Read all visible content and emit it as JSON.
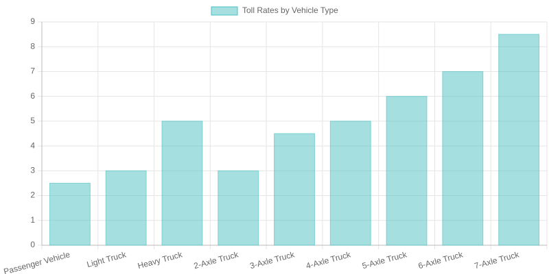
{
  "chart_data": {
    "type": "bar",
    "categories": [
      "Passenger Vehicle",
      "Light Truck",
      "Heavy Truck",
      "2-Axle Truck",
      "3-Axle Truck",
      "4-Axle Truck",
      "5-Axle Truck",
      "6-Axle Truck",
      "7-Axle Truck"
    ],
    "series": [
      {
        "name": "Toll Rates by Vehicle Type",
        "color": "#4bc0c0",
        "values": [
          2.5,
          3,
          5,
          3,
          4.5,
          5,
          6,
          7,
          8.5
        ]
      }
    ],
    "ylim": [
      0,
      9
    ],
    "yticks": [
      0,
      1,
      2,
      3,
      4,
      5,
      6,
      7,
      8,
      9
    ],
    "grid": true,
    "legend": "top"
  }
}
